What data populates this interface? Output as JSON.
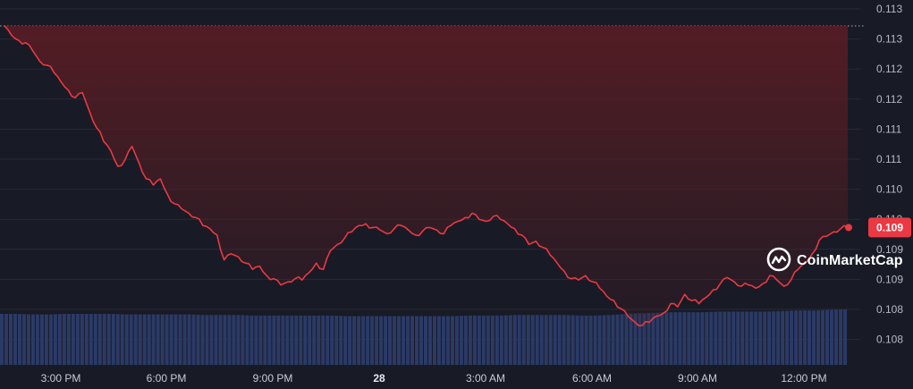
{
  "chart_data": {
    "type": "line",
    "title": "",
    "xlabel": "",
    "ylabel": "",
    "x_ticks": [
      "3:00 PM",
      "6:00 PM",
      "9:00 PM",
      "28",
      "3:00 AM",
      "6:00 AM",
      "9:00 AM",
      "12:00 PM"
    ],
    "y_ticks": [
      "0.113",
      "0.113",
      "0.112",
      "0.112",
      "0.111",
      "0.111",
      "0.110",
      "0.110",
      "0.109",
      "0.109",
      "0.108",
      "0.108"
    ],
    "ylim": [
      0.1077,
      0.1133
    ],
    "reference_line": 0.11285,
    "current_price_label": "0.109",
    "grid": true,
    "colors": {
      "line": "#ea3943",
      "fill_top": "#5a1c24",
      "background": "#181b25",
      "grid": "#272b38",
      "volume": "#2b3a66",
      "price_tag": "#ea3943"
    },
    "series": [
      {
        "x": [
          0,
          0.2,
          0.4,
          0.6,
          0.8,
          1,
          1.2,
          1.4,
          1.6,
          1.8,
          2,
          2.2,
          2.4,
          2.6,
          2.8,
          3,
          3.2,
          3.4,
          3.6,
          3.8,
          4,
          4.2,
          4.4,
          4.6,
          4.8,
          5,
          5.2,
          5.4,
          5.6,
          5.8,
          6,
          6.2,
          6.4,
          6.6,
          6.8,
          7,
          7.2,
          7.4,
          7.6,
          7.8,
          8,
          8.2,
          8.4,
          8.6,
          8.8,
          9,
          9.2,
          9.4,
          9.6,
          9.8,
          10,
          10.2,
          10.4,
          10.6,
          10.8,
          11,
          11.2,
          11.4,
          11.6,
          11.8,
          12,
          12.2,
          12.4,
          12.6,
          12.8,
          13,
          13.2,
          13.4,
          13.6,
          13.8,
          14,
          14.2,
          14.4,
          14.6,
          14.8,
          15,
          15.2,
          15.4,
          15.6,
          15.8,
          16,
          16.2,
          16.4,
          16.6,
          16.8,
          17,
          17.2,
          17.4,
          17.6,
          17.8,
          18,
          18.2,
          18.4,
          18.6,
          18.8,
          19,
          19.2,
          19.4,
          19.6,
          19.8,
          20,
          20.2,
          20.4,
          20.6,
          20.8,
          21,
          21.2,
          21.4,
          21.6,
          21.8,
          22,
          22.2,
          22.4,
          22.6,
          22.8,
          23,
          23.2,
          23.4,
          23.6,
          23.8
        ],
        "values": [
          0.11285,
          0.1127,
          0.11262,
          0.11258,
          0.11245,
          0.11228,
          0.11222,
          0.1121,
          0.11195,
          0.11182,
          0.1117,
          0.11178,
          0.11148,
          0.11122,
          0.111,
          0.11085,
          0.1106,
          0.1107,
          0.11092,
          0.11065,
          0.1104,
          0.1103,
          0.1104,
          0.11015,
          0.11,
          0.10992,
          0.10985,
          0.10978,
          0.10965,
          0.1096,
          0.1095,
          0.1091,
          0.1092,
          0.10915,
          0.10905,
          0.10895,
          0.109,
          0.10885,
          0.1088,
          0.1087,
          0.10875,
          0.1088,
          0.10878,
          0.1089,
          0.10905,
          0.10895,
          0.10925,
          0.10935,
          0.10945,
          0.10955,
          0.10965,
          0.10968,
          0.10962,
          0.10958,
          0.10952,
          0.1096,
          0.10965,
          0.10958,
          0.1095,
          0.10956,
          0.10962,
          0.10958,
          0.10952,
          0.10965,
          0.10972,
          0.10978,
          0.10985,
          0.10975,
          0.10972,
          0.1098,
          0.10975,
          0.10968,
          0.1096,
          0.1095,
          0.10935,
          0.1094,
          0.1093,
          0.10918,
          0.10905,
          0.10892,
          0.1088,
          0.10878,
          0.10885,
          0.10875,
          0.10865,
          0.10852,
          0.10845,
          0.10832,
          0.1082,
          0.1081,
          0.10805,
          0.1081,
          0.1082,
          0.10825,
          0.1084,
          0.10835,
          0.10855,
          0.10845,
          0.1084,
          0.1085,
          0.10862,
          0.10872,
          0.10882,
          0.10875,
          0.10868,
          0.1087,
          0.10865,
          0.10872,
          0.10885,
          0.10878,
          0.10868,
          0.10878,
          0.10895,
          0.10905,
          0.1092,
          0.10942,
          0.10948,
          0.10955,
          0.1096,
          0.10962
        ]
      }
    ],
    "volume": [
      0.92,
      0.92,
      0.91,
      0.91,
      0.92,
      0.92,
      0.92,
      0.92,
      0.91,
      0.91,
      0.91,
      0.91,
      0.91,
      0.9,
      0.9,
      0.9,
      0.89,
      0.89,
      0.89,
      0.89,
      0.89,
      0.89,
      0.88,
      0.88,
      0.88,
      0.88,
      0.88,
      0.88,
      0.88,
      0.88,
      0.89,
      0.89,
      0.89,
      0.9,
      0.9,
      0.9,
      0.9,
      0.89,
      0.89,
      0.9,
      0.92,
      0.93,
      0.94,
      0.95,
      0.95,
      0.95,
      0.96,
      0.96,
      0.96,
      0.96,
      0.97,
      0.98,
      0.98,
      0.99,
      1
    ]
  },
  "watermark": {
    "logo_icon": "coinmarketcap-logo-icon",
    "text": "CoinMarketCap"
  }
}
